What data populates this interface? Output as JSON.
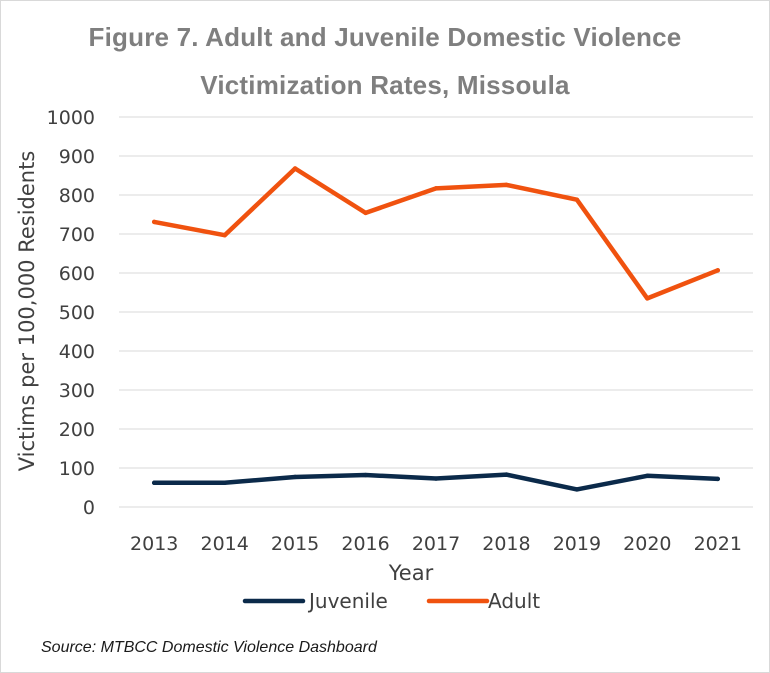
{
  "chart_data": {
    "type": "line",
    "title": "Figure 7. Adult and Juvenile Domestic Violence Victimization Rates, Missoula",
    "title_lines": [
      "Figure 7. Adult and Juvenile Domestic Violence",
      "Victimization Rates, Missoula"
    ],
    "xlabel": "Year",
    "ylabel": "Victims per 100,000 Residents",
    "categories": [
      "2013",
      "2014",
      "2015",
      "2016",
      "2017",
      "2018",
      "2019",
      "2020",
      "2021"
    ],
    "ylim": [
      0,
      1000
    ],
    "yticks": [
      0,
      100,
      200,
      300,
      400,
      500,
      600,
      700,
      800,
      900,
      1000
    ],
    "grid": true,
    "legend_position": "bottom",
    "series": [
      {
        "name": "Juvenile",
        "color": "#0b2a4a",
        "values": [
          62,
          62,
          77,
          82,
          73,
          83,
          45,
          80,
          72
        ]
      },
      {
        "name": "Adult",
        "color": "#f0520f",
        "values": [
          731,
          697,
          868,
          754,
          817,
          826,
          788,
          535,
          607
        ]
      }
    ]
  },
  "source": "Source: MTBCC Domestic Violence Dashboard"
}
